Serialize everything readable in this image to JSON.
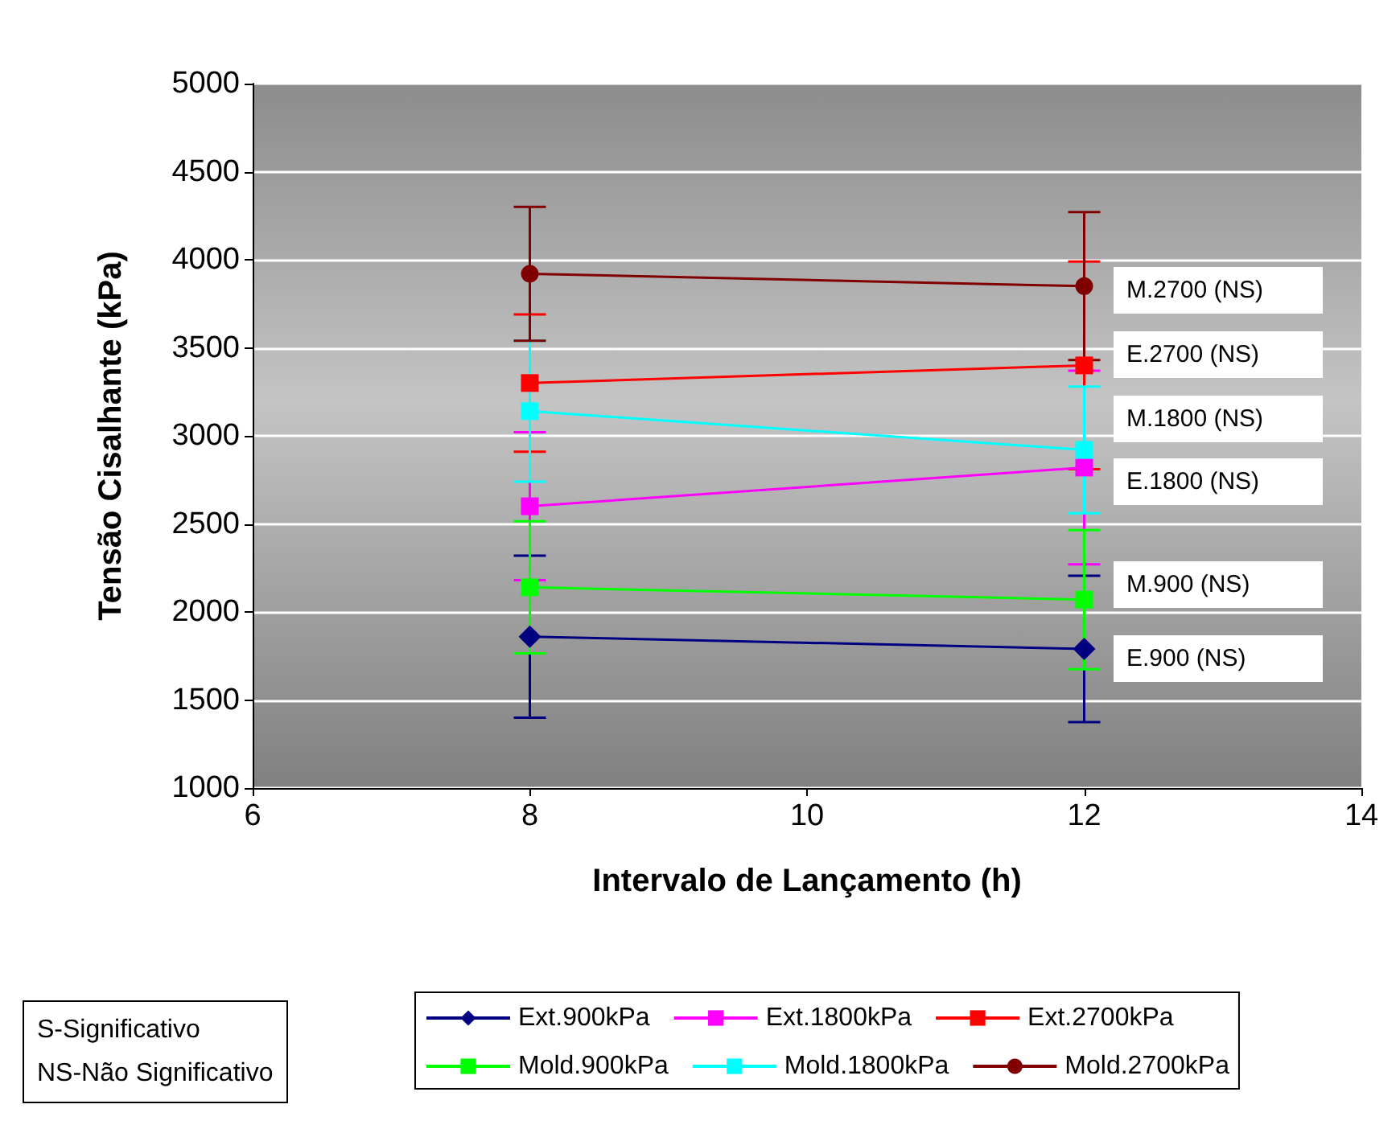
{
  "chart_data": {
    "type": "line",
    "xlabel": "Intervalo de Lançamento (h)",
    "ylabel": "Tensão Cisalhante (kPa)",
    "x": [
      8,
      12
    ],
    "xlim": [
      6,
      14
    ],
    "xticks": [
      6,
      8,
      10,
      12,
      14
    ],
    "ylim": [
      1000,
      5000
    ],
    "yticks": [
      1000,
      1500,
      2000,
      2500,
      3000,
      3500,
      4000,
      4500,
      5000
    ],
    "grid": "y",
    "legend": "bottom",
    "series": [
      {
        "name": "Ext.900kPa",
        "color": "#000080",
        "marker": "diamond",
        "values": [
          1860,
          1790
        ],
        "errors": [
          460,
          415
        ]
      },
      {
        "name": "Ext.1800kPa",
        "color": "#ff00ff",
        "marker": "square",
        "values": [
          2600,
          2820
        ],
        "errors": [
          420,
          550
        ]
      },
      {
        "name": "Ext.2700kPa",
        "color": "#ff0000",
        "marker": "square",
        "values": [
          3300,
          3400
        ],
        "errors": [
          390,
          590
        ]
      },
      {
        "name": "Mold.900kPa",
        "color": "#00ff00",
        "marker": "square",
        "values": [
          2140,
          2070
        ],
        "errors": [
          375,
          395
        ]
      },
      {
        "name": "Mold.1800kPa",
        "color": "#00ffff",
        "marker": "square",
        "values": [
          3140,
          2920
        ],
        "errors": [
          400,
          360
        ]
      },
      {
        "name": "Mold.2700kPa",
        "color": "#800000",
        "marker": "circle",
        "values": [
          3920,
          3850
        ],
        "errors": [
          380,
          420
        ]
      }
    ],
    "annotations": [
      "M.2700 (NS)",
      "E.2700 (NS)",
      "M.1800 (NS)",
      "E.1800 (NS)",
      "M.900 (NS)",
      "E.900 (NS)",
      "S-Significativo\nNS-Não Significativo"
    ]
  }
}
